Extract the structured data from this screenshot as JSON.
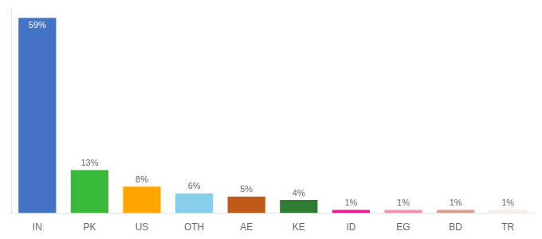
{
  "chart_data": {
    "type": "bar",
    "categories": [
      "IN",
      "PK",
      "US",
      "OTH",
      "AE",
      "KE",
      "ID",
      "EG",
      "BD",
      "TR"
    ],
    "values": [
      59,
      13,
      8,
      6,
      5,
      4,
      1,
      1,
      1,
      1
    ],
    "value_labels": [
      "59%",
      "13%",
      "8%",
      "6%",
      "5%",
      "4%",
      "1%",
      "1%",
      "1%",
      "1%"
    ],
    "colors": [
      "#4472c4",
      "#3ab83a",
      "#ffa500",
      "#87ceeb",
      "#c05a1a",
      "#2e7d32",
      "#e91e8c",
      "#f48fb1",
      "#d7a090",
      "#f5f0e8"
    ],
    "ylim": [
      0,
      62
    ],
    "data_labels": true,
    "tick_labels": "x",
    "grid": false
  }
}
